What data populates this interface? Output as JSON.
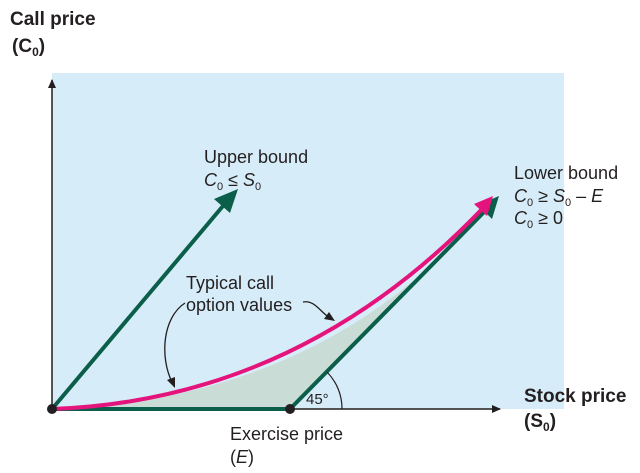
{
  "colors": {
    "background_panel": "#d6ecf8",
    "bound_lines": "#0b5e4a",
    "typical_curve": "#e5147c",
    "shaded_region": "#c9dcd5",
    "axis": "#231f20"
  },
  "axes": {
    "y_label_line1": "Call price",
    "y_label_line2": "(C",
    "y_label_sub": "0",
    "y_label_close": ")",
    "x_label_line1": "Stock price",
    "x_label_line2": "(S",
    "x_label_sub": "0",
    "x_label_close": ")"
  },
  "upper_bound": {
    "title": "Upper bound",
    "c": "C",
    "sub0": "0",
    "rel": " ≤ ",
    "s": "S",
    "sub1": "0"
  },
  "lower_bound": {
    "title": "Lower bound",
    "line1": {
      "c": "C",
      "sub0": "0",
      "rel": " ≥ ",
      "s": "S",
      "sub1": "0",
      "rest": " – ",
      "e": "E"
    },
    "line2": {
      "c": "C",
      "sub0": "0",
      "rel": " ≥ 0"
    }
  },
  "typical": {
    "line1": "Typical call",
    "line2": "option values"
  },
  "angle_label": "45°",
  "exercise": {
    "line1": "Exercise price",
    "line2_open": "(",
    "line2_e": "E",
    "line2_close": ")"
  }
}
